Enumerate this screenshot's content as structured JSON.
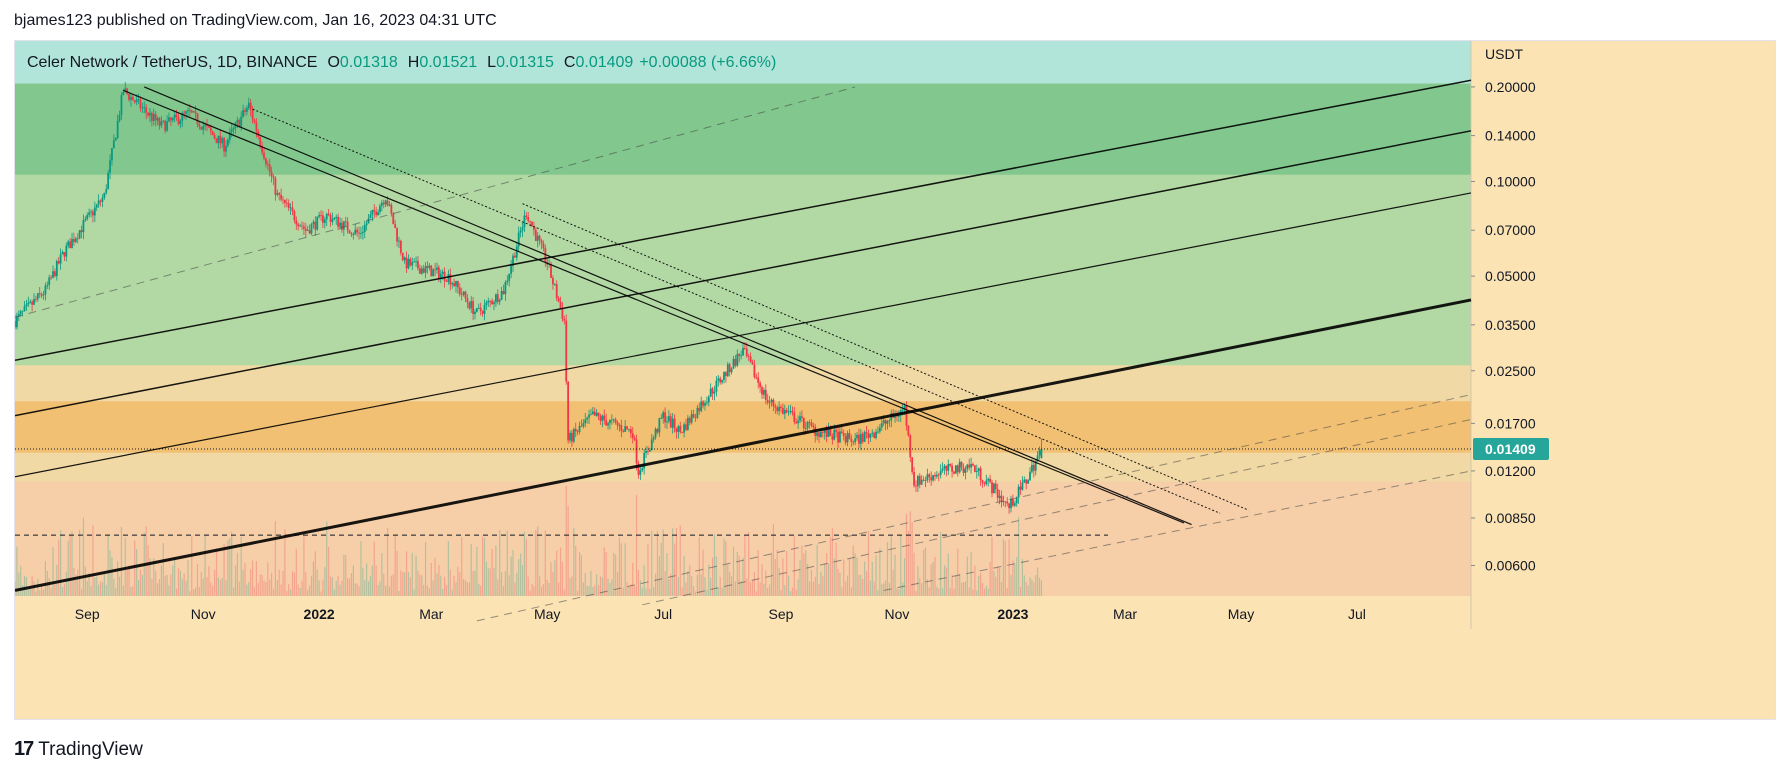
{
  "header": {
    "publish_line": "bjames123 published on TradingView.com, Jan 16, 2023 04:31 UTC"
  },
  "symbol": {
    "name": "Celer Network / TetherUS, 1D, BINANCE",
    "o_label": "O",
    "o_value": "0.01318",
    "h_label": "H",
    "h_value": "0.01521",
    "l_label": "L",
    "l_value": "0.01315",
    "c_label": "C",
    "c_value": "0.01409",
    "change": "+0.00088 (+6.66%)"
  },
  "footer": {
    "brand": "TradingView",
    "logo_glyph": "17"
  },
  "colors": {
    "up": "#089981",
    "down": "#f23645",
    "current_price_badge": "#26a69a",
    "zone_teal": "#b2e5d9",
    "zone_green_dark": "#81c78e",
    "zone_green_light": "#b2d8a4",
    "zone_yellow": "#f0d9a4",
    "zone_orange": "#f1c073",
    "zone_peach": "#f6cfa9"
  },
  "chart_data": {
    "type": "candlestick",
    "title": "Celer Network / TetherUS, 1D, BINANCE",
    "y_axis_unit": "USDT",
    "y_scale": "log",
    "ylim": [
      0.0048,
      0.28
    ],
    "xlim": [
      "2021-07-25",
      "2023-08-30"
    ],
    "y_ticks": [
      "0.20000",
      "0.14000",
      "0.10000",
      "0.07000",
      "0.05000",
      "0.03500",
      "0.02500",
      "0.01700",
      "0.01200",
      "0.00850",
      "0.00600"
    ],
    "x_ticks": [
      {
        "label": "Sep",
        "date": "2021-09-01"
      },
      {
        "label": "Nov",
        "date": "2021-11-01"
      },
      {
        "label": "2022",
        "date": "2022-01-01",
        "bold": true
      },
      {
        "label": "Mar",
        "date": "2022-03-01"
      },
      {
        "label": "May",
        "date": "2022-05-01"
      },
      {
        "label": "Jul",
        "date": "2022-07-01"
      },
      {
        "label": "Sep",
        "date": "2022-09-01"
      },
      {
        "label": "Nov",
        "date": "2022-11-01"
      },
      {
        "label": "2023",
        "date": "2023-01-01",
        "bold": true
      },
      {
        "label": "Mar",
        "date": "2023-03-01"
      },
      {
        "label": "May",
        "date": "2023-05-01"
      },
      {
        "label": "Jul",
        "date": "2023-07-01"
      }
    ],
    "last_price": 0.01409,
    "last_price_label": "0.01409",
    "price_path": [
      {
        "date": "2021-07-25",
        "price": 0.036
      },
      {
        "date": "2021-08-10",
        "price": 0.045
      },
      {
        "date": "2021-08-20",
        "price": 0.06
      },
      {
        "date": "2021-09-10",
        "price": 0.09
      },
      {
        "date": "2021-09-20",
        "price": 0.195
      },
      {
        "date": "2021-10-10",
        "price": 0.15
      },
      {
        "date": "2021-10-25",
        "price": 0.165
      },
      {
        "date": "2021-11-12",
        "price": 0.13
      },
      {
        "date": "2021-11-25",
        "price": 0.175
      },
      {
        "date": "2021-12-10",
        "price": 0.09
      },
      {
        "date": "2021-12-25",
        "price": 0.07
      },
      {
        "date": "2022-01-05",
        "price": 0.078
      },
      {
        "date": "2022-01-22",
        "price": 0.068
      },
      {
        "date": "2022-02-05",
        "price": 0.09
      },
      {
        "date": "2022-02-15",
        "price": 0.055
      },
      {
        "date": "2022-03-10",
        "price": 0.05
      },
      {
        "date": "2022-03-25",
        "price": 0.038
      },
      {
        "date": "2022-04-08",
        "price": 0.045
      },
      {
        "date": "2022-04-20",
        "price": 0.08
      },
      {
        "date": "2022-05-01",
        "price": 0.055
      },
      {
        "date": "2022-05-10",
        "price": 0.036
      },
      {
        "date": "2022-05-12",
        "price": 0.015
      },
      {
        "date": "2022-05-25",
        "price": 0.018
      },
      {
        "date": "2022-06-15",
        "price": 0.016
      },
      {
        "date": "2022-06-18",
        "price": 0.012
      },
      {
        "date": "2022-07-01",
        "price": 0.018
      },
      {
        "date": "2022-07-10",
        "price": 0.016
      },
      {
        "date": "2022-07-25",
        "price": 0.021
      },
      {
        "date": "2022-08-12",
        "price": 0.029
      },
      {
        "date": "2022-08-25",
        "price": 0.02
      },
      {
        "date": "2022-09-20",
        "price": 0.016
      },
      {
        "date": "2022-10-10",
        "price": 0.015
      },
      {
        "date": "2022-10-20",
        "price": 0.016
      },
      {
        "date": "2022-11-05",
        "price": 0.019
      },
      {
        "date": "2022-11-10",
        "price": 0.011
      },
      {
        "date": "2022-11-25",
        "price": 0.012
      },
      {
        "date": "2022-12-10",
        "price": 0.0125
      },
      {
        "date": "2022-12-22",
        "price": 0.0105
      },
      {
        "date": "2022-12-30",
        "price": 0.0092
      },
      {
        "date": "2023-01-08",
        "price": 0.0112
      },
      {
        "date": "2023-01-16",
        "price": 0.01409
      }
    ],
    "price_zones": [
      {
        "from": 0.205,
        "to": 0.28,
        "color": "#b2e5d9"
      },
      {
        "from": 0.105,
        "to": 0.205,
        "color": "#81c78e"
      },
      {
        "from": 0.026,
        "to": 0.105,
        "color": "#b2d8a4"
      },
      {
        "from": 0.02,
        "to": 0.026,
        "color": "#f0d9a4"
      },
      {
        "from": 0.0137,
        "to": 0.02,
        "color": "#f1c073"
      },
      {
        "from": 0.0111,
        "to": 0.0137,
        "color": "#f0d9a4"
      },
      {
        "from": 0.0048,
        "to": 0.0111,
        "color": "#f6cfa9"
      }
    ],
    "horizontal_lines": [
      {
        "price": 0.0075,
        "from": "2021-07-25",
        "to": "2023-02-20",
        "style": "dashed"
      },
      {
        "price": 0.01409,
        "from": "2021-07-25",
        "to": "2023-08-30",
        "style": "dotted"
      }
    ],
    "trend_lines": [
      {
        "p1": [
          "2021-09-20",
          0.195
        ],
        "p2": [
          "2023-04-01",
          0.0082
        ],
        "style": "solid",
        "width": 1.2
      },
      {
        "p1": [
          "2021-10-01",
          0.2
        ],
        "p2": [
          "2023-04-05",
          0.0081
        ],
        "style": "solid",
        "width": 1.2
      },
      {
        "p1": [
          "2021-11-27",
          0.17
        ],
        "p2": [
          "2023-04-20",
          0.0088
        ],
        "style": "dotted",
        "width": 1
      },
      {
        "p1": [
          "2022-04-18",
          0.085
        ],
        "p2": [
          "2023-05-05",
          0.009
        ],
        "style": "dotted",
        "width": 1
      },
      {
        "p1": [
          "2021-07-25",
          0.005
        ],
        "p2": [
          "2023-08-30",
          0.042
        ],
        "style": "solid",
        "width": 3
      },
      {
        "p1": [
          "2021-07-25",
          0.0115
        ],
        "p2": [
          "2023-08-30",
          0.092
        ],
        "style": "solid",
        "width": 1.2
      },
      {
        "p1": [
          "2021-07-25",
          0.018
        ],
        "p2": [
          "2023-08-30",
          0.145
        ],
        "style": "solid",
        "width": 1.5
      },
      {
        "p1": [
          "2021-07-25",
          0.027
        ],
        "p2": [
          "2023-08-30",
          0.21
        ],
        "style": "solid",
        "width": 1.5
      },
      {
        "p1": [
          "2021-07-25",
          0.037
        ],
        "p2": [
          "2022-10-10",
          0.2
        ],
        "style": "dashed",
        "width": 1
      },
      {
        "p1": [
          "2022-03-25",
          0.004
        ],
        "p2": [
          "2023-08-30",
          0.021
        ],
        "style": "dashed",
        "width": 1
      },
      {
        "p1": [
          "2022-06-20",
          0.0045
        ],
        "p2": [
          "2023-08-30",
          0.0175
        ],
        "style": "dashed",
        "width": 1
      },
      {
        "p1": [
          "2022-10-25",
          0.005
        ],
        "p2": [
          "2023-08-30",
          0.012
        ],
        "style": "dashed",
        "width": 1
      }
    ]
  }
}
